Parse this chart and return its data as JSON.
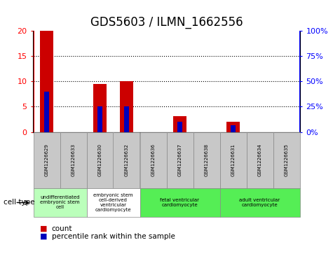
{
  "title": "GDS5603 / ILMN_1662556",
  "samples": [
    "GSM1226629",
    "GSM1226633",
    "GSM1226630",
    "GSM1226632",
    "GSM1226636",
    "GSM1226637",
    "GSM1226638",
    "GSM1226631",
    "GSM1226634",
    "GSM1226635"
  ],
  "count_values": [
    20,
    0,
    9.5,
    10,
    0,
    3.2,
    0,
    2.1,
    0,
    0
  ],
  "percentile_values": [
    40,
    0,
    25,
    25,
    0,
    10,
    0,
    7,
    0,
    0
  ],
  "ylim_left": [
    0,
    20
  ],
  "ylim_right": [
    0,
    100
  ],
  "yticks_left": [
    0,
    5,
    10,
    15,
    20
  ],
  "yticks_right": [
    0,
    25,
    50,
    75,
    100
  ],
  "ytick_labels_left": [
    "0",
    "5",
    "10",
    "15",
    "20"
  ],
  "ytick_labels_right": [
    "0%",
    "25%",
    "50%",
    "75%",
    "100%"
  ],
  "cell_type_groups": [
    {
      "label": "undifferentiated\nembryonic stem\ncell",
      "start": 0,
      "end": 2,
      "color": "#bbffbb"
    },
    {
      "label": "embryonic stem\ncell-derived\nventricular\ncardiomyocyte",
      "start": 2,
      "end": 4,
      "color": "#ffffff"
    },
    {
      "label": "fetal ventricular\ncardiomyocyte",
      "start": 4,
      "end": 7,
      "color": "#55ee55"
    },
    {
      "label": "adult ventricular\ncardiomyocyte",
      "start": 7,
      "end": 10,
      "color": "#55ee55"
    }
  ],
  "count_color": "#cc0000",
  "percentile_color": "#0000bb",
  "cell_type_label": "cell type",
  "legend_count": "count",
  "legend_percentile": "percentile rank within the sample",
  "title_fontsize": 12,
  "axis_fontsize": 8,
  "xtick_fontsize": 6,
  "legend_fontsize": 8,
  "sample_box_color": "#c8c8c8",
  "sample_box_edge": "#888888"
}
